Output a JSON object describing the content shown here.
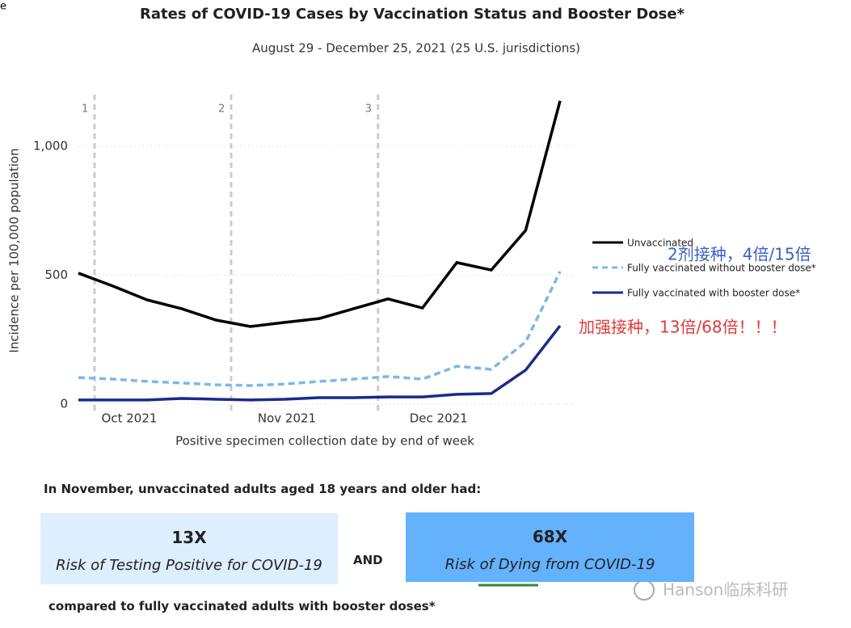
{
  "chart_data": {
    "type": "line",
    "title": "Rates of COVID-19 Cases by Vaccination Status and Booster Dose*",
    "subtitle": "August 29 - December 25, 2021 (25 U.S. jurisdictions)",
    "y_label": "Incidence per 100,000 population",
    "x_label": "Positive specimen collection date by end of week",
    "x": [
      0,
      1,
      2,
      3,
      4,
      5,
      6,
      7,
      8,
      9,
      10,
      11,
      12,
      13,
      14
    ],
    "xlim": [
      0,
      14
    ],
    "xticks": [
      {
        "value": 1.48,
        "label": "Oct 2021"
      },
      {
        "value": 6.06,
        "label": "Nov 2021"
      },
      {
        "value": 10.47,
        "label": "Dec 2021"
      }
    ],
    "ylim": [
      0,
      1200
    ],
    "yticks": [
      0,
      500,
      {
        "value": 1000,
        "label": "1,000"
      }
    ],
    "grid": true,
    "vlines": [
      {
        "value": 0.47,
        "label": "1"
      },
      {
        "value": 4.44,
        "label": "2"
      },
      {
        "value": 8.71,
        "label": "3"
      }
    ],
    "series": [
      {
        "name": "Unvaccinated",
        "color": "#000000",
        "dash": false,
        "values": [
          508,
          458,
          404,
          370,
          326,
          301,
          317,
          332,
          370,
          408,
          373,
          549,
          520,
          674,
          1176
        ]
      },
      {
        "name": "Fully vaccinated without booster dose*",
        "color": "#7ab8ec",
        "dash": true,
        "values": [
          103,
          97,
          88,
          82,
          75,
          72,
          78,
          88,
          97,
          107,
          97,
          147,
          135,
          241,
          514
        ]
      },
      {
        "name": "Fully vaccinated with booster dose*",
        "color": "#1a2a8c",
        "dash": false,
        "values": [
          16,
          16,
          16,
          22,
          19,
          16,
          19,
          25,
          25,
          28,
          28,
          38,
          41,
          132,
          304
        ]
      }
    ],
    "annotations": [
      "2剂接种，4倍/15倍",
      "加强接种，13倍/68倍！！！"
    ]
  },
  "summary": {
    "intro": "In November, unvaccinated adults aged 18 years and older had:",
    "boxes": [
      {
        "value": "13X",
        "text": "Risk of Testing Positive for COVID-19"
      },
      {
        "value": "68X",
        "text": "Risk of Dying from COVID-19"
      }
    ],
    "and": "AND",
    "outro": "compared to fully vaccinated adults with booster doses*"
  },
  "corner": "e",
  "watermark": "Hanson临床科研"
}
